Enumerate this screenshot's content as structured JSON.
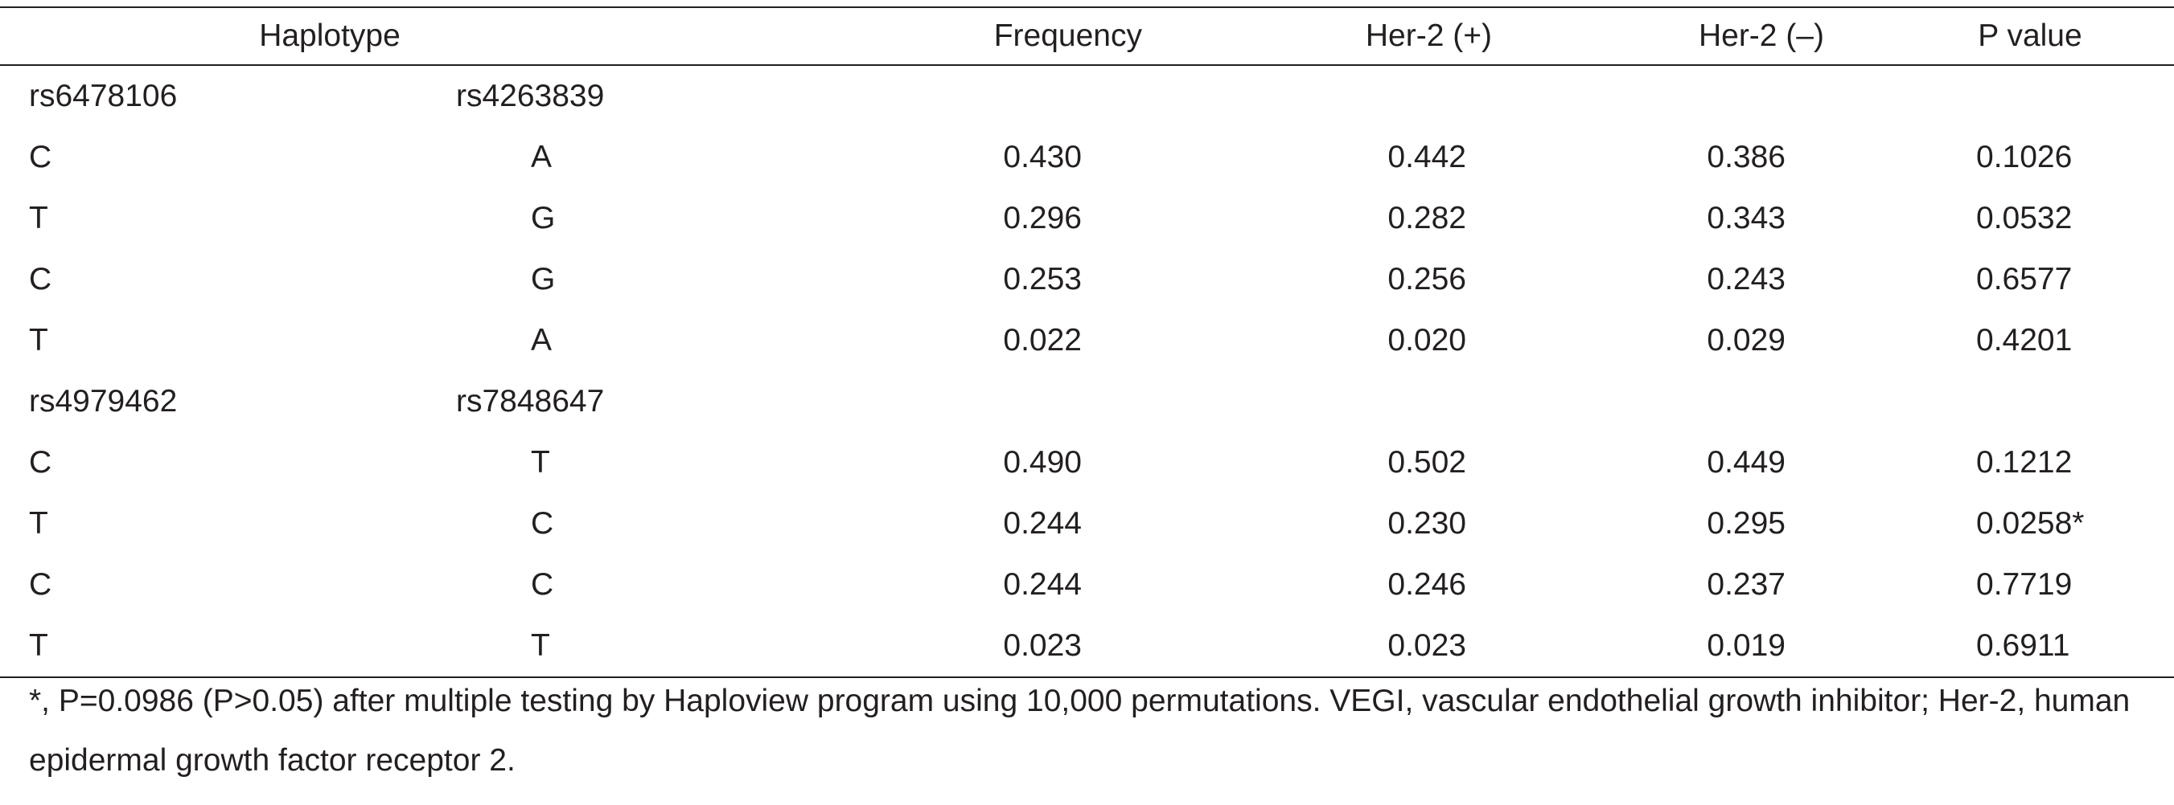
{
  "table": {
    "headers": {
      "haplotype": "Haplotype",
      "frequency": "Frequency",
      "her2_pos": "Her-2 (+)",
      "her2_neg": "Her-2 (–)",
      "p_value": "P value"
    },
    "groups": [
      {
        "snp1": "rs6478106",
        "snp2": "rs4263839",
        "rows": [
          {
            "allele1": "C",
            "allele2": "A",
            "frequency": "0.430",
            "her2_pos": "0.442",
            "her2_neg": "0.386",
            "p_value": "0.1026"
          },
          {
            "allele1": "T",
            "allele2": "G",
            "frequency": "0.296",
            "her2_pos": "0.282",
            "her2_neg": "0.343",
            "p_value": "0.0532"
          },
          {
            "allele1": "C",
            "allele2": "G",
            "frequency": "0.253",
            "her2_pos": "0.256",
            "her2_neg": "0.243",
            "p_value": "0.6577"
          },
          {
            "allele1": "T",
            "allele2": "A",
            "frequency": "0.022",
            "her2_pos": "0.020",
            "her2_neg": "0.029",
            "p_value": "0.4201"
          }
        ]
      },
      {
        "snp1": "rs4979462",
        "snp2": "rs7848647",
        "rows": [
          {
            "allele1": "C",
            "allele2": "T",
            "frequency": "0.490",
            "her2_pos": "0.502",
            "her2_neg": "0.449",
            "p_value": "0.1212"
          },
          {
            "allele1": "T",
            "allele2": "C",
            "frequency": "0.244",
            "her2_pos": "0.230",
            "her2_neg": "0.295",
            "p_value": "0.0258*"
          },
          {
            "allele1": "C",
            "allele2": "C",
            "frequency": "0.244",
            "her2_pos": "0.246",
            "her2_neg": "0.237",
            "p_value": "0.7719"
          },
          {
            "allele1": "T",
            "allele2": "T",
            "frequency": "0.023",
            "her2_pos": "0.023",
            "her2_neg": "0.019",
            "p_value": "0.6911"
          }
        ]
      }
    ]
  },
  "footnote": "*, P=0.0986 (P>0.05) after multiple testing by Haploview program using 10,000 permutations. VEGI, vascular endothelial growth inhibitor; Her-2, human epidermal growth factor receptor 2."
}
